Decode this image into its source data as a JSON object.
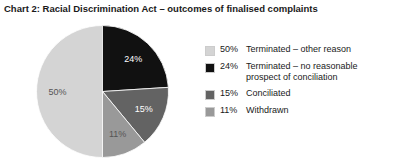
{
  "chart_data": {
    "type": "pie",
    "title": "Chart 2: Racial Discrimination Act – outcomes of finalised complaints",
    "categories": [
      "Terminated – other reason",
      "Terminated – no reasonable\nprospect of conciliation",
      "Conciliated",
      "Withdrawn"
    ],
    "values": [
      50,
      24,
      15,
      11
    ],
    "value_labels": [
      "50%",
      "24%",
      "15%",
      "11%"
    ],
    "colors": [
      "#d4d4d4",
      "#111111",
      "#636363",
      "#999999"
    ],
    "data_labels": true,
    "legend": "right"
  }
}
